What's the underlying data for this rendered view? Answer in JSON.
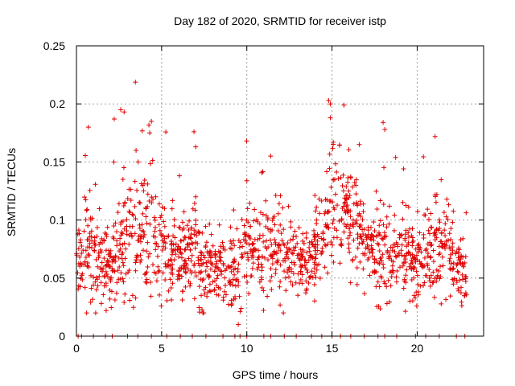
{
  "chart_data": {
    "type": "scatter",
    "title": "Day 182 of 2020, SRMTID for receiver istp",
    "xlabel": "GPS time / hours",
    "ylabel": "SRMTID / TECUs",
    "xlim": [
      0,
      23.9
    ],
    "ylim": [
      0,
      0.25
    ],
    "x_ticks": [
      0,
      5,
      10,
      15,
      20
    ],
    "x_tick_labels": [
      "0",
      "5",
      "10",
      "15",
      "20"
    ],
    "y_ticks": [
      0,
      0.05,
      0.1,
      0.15,
      0.2,
      0.25
    ],
    "y_tick_labels": [
      "0",
      "0.05",
      "0.1",
      "0.15",
      "0.2",
      "0.25"
    ],
    "grid": true,
    "marker": "+",
    "series_color": "#e00000",
    "baseline_points_x": [
      0.1,
      0.3,
      1.0,
      1.7,
      2.1,
      3.0,
      3.6,
      4.4,
      5.3,
      6.1,
      6.8,
      7.6,
      8.6,
      9.3,
      9.6,
      10.0,
      11.0,
      11.4,
      12.2,
      12.9,
      13.8,
      14.4,
      15.0,
      15.5,
      16.1,
      16.9,
      17.7,
      18.1,
      18.8,
      19.9,
      20.5,
      21.3,
      22.3,
      22.8
    ],
    "outlier_points": [
      [
        0.7,
        0.18
      ],
      [
        2.6,
        0.195
      ],
      [
        2.8,
        0.193
      ],
      [
        3.5,
        0.16
      ],
      [
        4.4,
        0.185
      ],
      [
        4.3,
        0.175
      ],
      [
        6.9,
        0.176
      ],
      [
        7.0,
        0.163
      ],
      [
        9.5,
        0.01
      ],
      [
        14.8,
        0.203
      ],
      [
        14.9,
        0.2
      ],
      [
        14.9,
        0.188
      ],
      [
        16.6,
        0.165
      ],
      [
        18.0,
        0.184
      ],
      [
        18.1,
        0.178
      ],
      [
        11.4,
        0.155
      ]
    ],
    "envelope": [
      {
        "t": 0.0,
        "c": 0.06,
        "s": 0.015
      },
      {
        "t": 0.5,
        "c": 0.075,
        "s": 0.025
      },
      {
        "t": 1.0,
        "c": 0.065,
        "s": 0.022
      },
      {
        "t": 1.5,
        "c": 0.06,
        "s": 0.018
      },
      {
        "t": 2.0,
        "c": 0.055,
        "s": 0.015
      },
      {
        "t": 2.5,
        "c": 0.07,
        "s": 0.025
      },
      {
        "t": 3.0,
        "c": 0.095,
        "s": 0.03
      },
      {
        "t": 3.5,
        "c": 0.085,
        "s": 0.028
      },
      {
        "t": 4.0,
        "c": 0.09,
        "s": 0.028
      },
      {
        "t": 4.5,
        "c": 0.09,
        "s": 0.03
      },
      {
        "t": 5.0,
        "c": 0.08,
        "s": 0.022
      },
      {
        "t": 5.5,
        "c": 0.07,
        "s": 0.018
      },
      {
        "t": 6.0,
        "c": 0.065,
        "s": 0.017
      },
      {
        "t": 6.5,
        "c": 0.065,
        "s": 0.018
      },
      {
        "t": 7.0,
        "c": 0.075,
        "s": 0.025
      },
      {
        "t": 7.5,
        "c": 0.06,
        "s": 0.016
      },
      {
        "t": 8.0,
        "c": 0.06,
        "s": 0.015
      },
      {
        "t": 8.5,
        "c": 0.06,
        "s": 0.014
      },
      {
        "t": 9.0,
        "c": 0.055,
        "s": 0.014
      },
      {
        "t": 9.5,
        "c": 0.06,
        "s": 0.017
      },
      {
        "t": 10.0,
        "c": 0.08,
        "s": 0.022
      },
      {
        "t": 10.5,
        "c": 0.075,
        "s": 0.02
      },
      {
        "t": 11.0,
        "c": 0.08,
        "s": 0.022
      },
      {
        "t": 11.5,
        "c": 0.085,
        "s": 0.022
      },
      {
        "t": 12.0,
        "c": 0.07,
        "s": 0.018
      },
      {
        "t": 12.5,
        "c": 0.07,
        "s": 0.018
      },
      {
        "t": 13.0,
        "c": 0.07,
        "s": 0.017
      },
      {
        "t": 13.5,
        "c": 0.06,
        "s": 0.015
      },
      {
        "t": 14.0,
        "c": 0.065,
        "s": 0.016
      },
      {
        "t": 14.5,
        "c": 0.09,
        "s": 0.02
      },
      {
        "t": 15.0,
        "c": 0.11,
        "s": 0.025
      },
      {
        "t": 15.5,
        "c": 0.1,
        "s": 0.024
      },
      {
        "t": 16.0,
        "c": 0.095,
        "s": 0.022
      },
      {
        "t": 16.5,
        "c": 0.105,
        "s": 0.026
      },
      {
        "t": 17.0,
        "c": 0.08,
        "s": 0.02
      },
      {
        "t": 17.5,
        "c": 0.075,
        "s": 0.018
      },
      {
        "t": 18.0,
        "c": 0.075,
        "s": 0.02
      },
      {
        "t": 18.5,
        "c": 0.07,
        "s": 0.02
      },
      {
        "t": 19.0,
        "c": 0.075,
        "s": 0.02
      },
      {
        "t": 19.5,
        "c": 0.065,
        "s": 0.018
      },
      {
        "t": 20.0,
        "c": 0.06,
        "s": 0.017
      },
      {
        "t": 20.5,
        "c": 0.075,
        "s": 0.02
      },
      {
        "t": 21.0,
        "c": 0.07,
        "s": 0.02
      },
      {
        "t": 21.5,
        "c": 0.075,
        "s": 0.02
      },
      {
        "t": 22.0,
        "c": 0.065,
        "s": 0.018
      },
      {
        "t": 22.5,
        "c": 0.055,
        "s": 0.015
      },
      {
        "t": 22.9,
        "c": 0.05,
        "s": 0.013
      }
    ],
    "n_points": 1500
  }
}
